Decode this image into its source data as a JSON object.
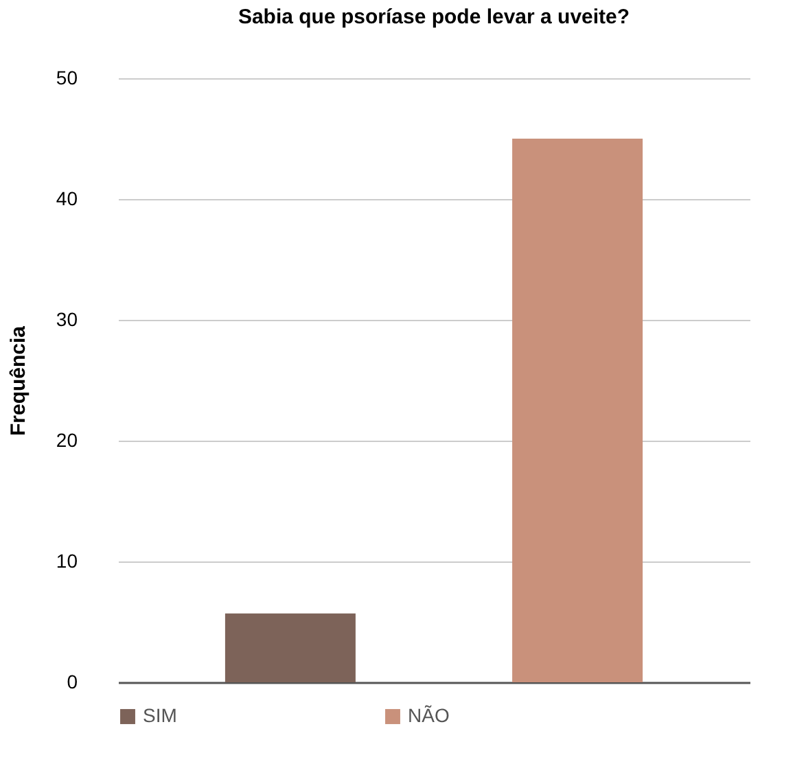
{
  "chart_data": {
    "type": "bar",
    "title": "Sabia que psoríase pode levar a uveite?",
    "ylabel": "Frequência",
    "categories": [
      null,
      null
    ],
    "series": [
      {
        "name": "SIM",
        "color": "#7d6359",
        "values": [
          5.7,
          null
        ]
      },
      {
        "name": "NÃO",
        "color": "#c9917b",
        "values": [
          null,
          45
        ]
      }
    ],
    "ylim": [
      0,
      50
    ],
    "yticks": [
      0,
      10,
      20,
      30,
      40,
      50
    ],
    "grid": "y",
    "legend": "bottom",
    "tick_labels": "y"
  }
}
